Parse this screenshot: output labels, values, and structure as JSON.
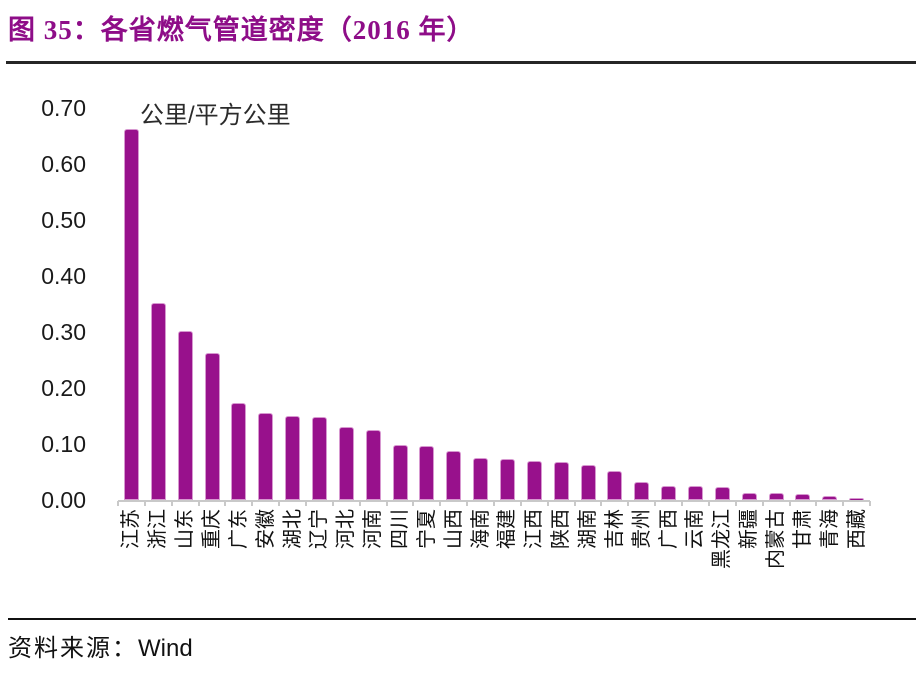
{
  "header": {
    "title": "图 35：各省燃气管道密度（2016 年）"
  },
  "chart_data": {
    "type": "bar",
    "title": "各省燃气管道密度（2016 年）",
    "unit_label": "公里/平方公里",
    "categories": [
      "江苏",
      "浙江",
      "山东",
      "重庆",
      "广东",
      "安徽",
      "湖北",
      "辽宁",
      "河北",
      "河南",
      "四川",
      "宁夏",
      "山西",
      "海南",
      "福建",
      "江西",
      "陕西",
      "湖南",
      "吉林",
      "贵州",
      "广西",
      "云南",
      "黑龙江",
      "新疆",
      "内蒙古",
      "甘肃",
      "青海",
      "西藏"
    ],
    "values": [
      0.66,
      0.35,
      0.3,
      0.26,
      0.17,
      0.152,
      0.148,
      0.146,
      0.127,
      0.123,
      0.095,
      0.094,
      0.085,
      0.073,
      0.071,
      0.067,
      0.066,
      0.06,
      0.05,
      0.03,
      0.023,
      0.022,
      0.02,
      0.01,
      0.009,
      0.008,
      0.004,
      0.001
    ],
    "ylim": [
      0.0,
      0.7
    ],
    "yticks": [
      "0.00",
      "0.10",
      "0.20",
      "0.30",
      "0.40",
      "0.50",
      "0.60",
      "0.70"
    ],
    "ytick_values": [
      0.0,
      0.1,
      0.2,
      0.3,
      0.4,
      0.5,
      0.6,
      0.7
    ],
    "bar_color": "#98118C",
    "grid": false,
    "legend_position": "none",
    "xlabel": "",
    "ylabel": "公里/平方公里"
  },
  "footer": {
    "label": "资料来源：",
    "source": "Wind"
  }
}
